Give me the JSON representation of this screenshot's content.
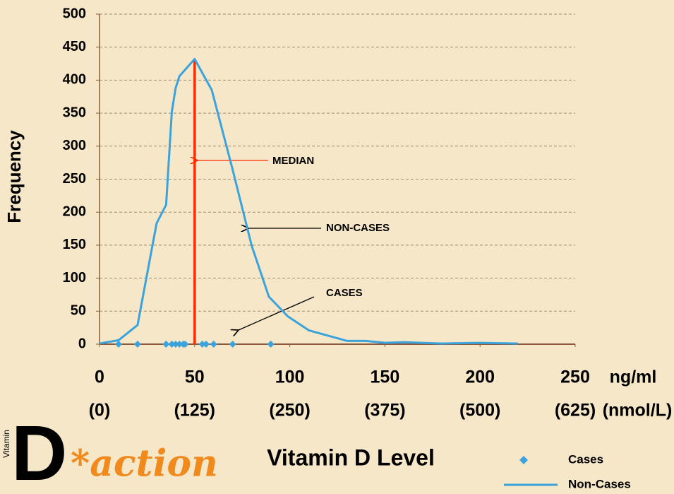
{
  "chart_data": {
    "type": "line",
    "ylabel": "Frequency",
    "xlabel": "Vitamin D Level",
    "xlim": [
      0,
      250
    ],
    "xticks": [
      0,
      50,
      100,
      150,
      200,
      250
    ],
    "xtick_sublabels": [
      "(0)",
      "(125)",
      "(250)",
      "(375)",
      "(500)",
      "(625)"
    ],
    "x_unit": "ng/ml",
    "x_subunit": "(nmol/L)",
    "ylim": [
      0,
      500
    ],
    "yticks": [
      0,
      50,
      100,
      150,
      200,
      250,
      300,
      350,
      400,
      450,
      500
    ],
    "grid": true,
    "median": 50,
    "median_height": 432,
    "median_color": "#ff2a00",
    "annotations": [
      "MEDIAN",
      "NON-CASES",
      "CASES"
    ],
    "series": [
      {
        "name": "Cases",
        "mode": "markers",
        "color": "#3ba3dc",
        "x": [
          10,
          20,
          35,
          38,
          40,
          42,
          44,
          45,
          54,
          56,
          60,
          70,
          90
        ],
        "values": [
          0,
          0,
          0,
          0,
          0,
          0,
          0,
          0,
          0,
          0,
          0,
          0,
          0
        ]
      },
      {
        "name": "Non-Cases",
        "mode": "lines",
        "color": "#3ba3dc",
        "x": [
          0,
          10,
          20,
          30,
          35,
          38,
          40,
          42,
          50,
          59,
          70,
          80,
          89,
          99,
          110,
          130,
          140,
          150,
          160,
          180,
          200,
          220
        ],
        "values": [
          1,
          6,
          29,
          183,
          211,
          352,
          388,
          406,
          432,
          385,
          264,
          149,
          72,
          42,
          21,
          5,
          5,
          2,
          3,
          1,
          2,
          1
        ]
      }
    ],
    "logo": {
      "small": "Vitamin",
      "big": "D",
      "rest": "*action"
    }
  }
}
